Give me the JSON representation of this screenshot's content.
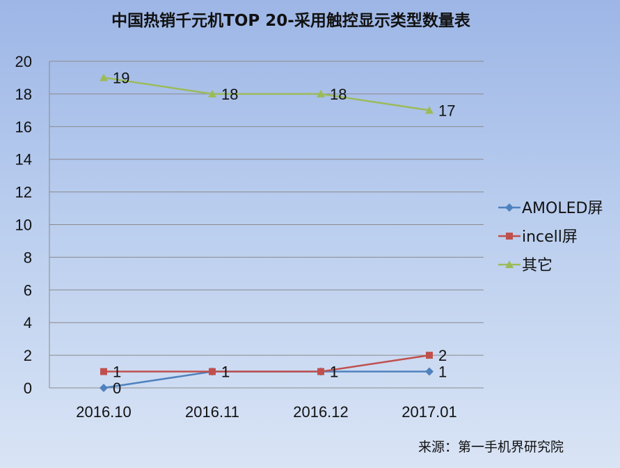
{
  "chart_data": {
    "type": "line",
    "title": "中国热销千元机TOP 20-采用触控显示类型数量表",
    "categories": [
      "2016.10",
      "2016.11",
      "2016.12",
      "2017.01"
    ],
    "ylim": [
      0,
      20
    ],
    "yticks": [
      "0",
      "2",
      "4",
      "6",
      "8",
      "10",
      "12",
      "14",
      "16",
      "18",
      "20"
    ],
    "grid": true,
    "legend_position": "right",
    "series": [
      {
        "name": "AMOLED屏",
        "color": "#4f81bd",
        "marker": "diamond",
        "values": [
          0,
          1,
          1,
          1
        ]
      },
      {
        "name": "incell屏",
        "color": "#c0504d",
        "marker": "square",
        "values": [
          1,
          1,
          1,
          2
        ]
      },
      {
        "name": "其它",
        "color": "#9bbb59",
        "marker": "triangle",
        "values": [
          19,
          18,
          18,
          17
        ]
      }
    ],
    "source": "来源：第一手机界研究院"
  }
}
